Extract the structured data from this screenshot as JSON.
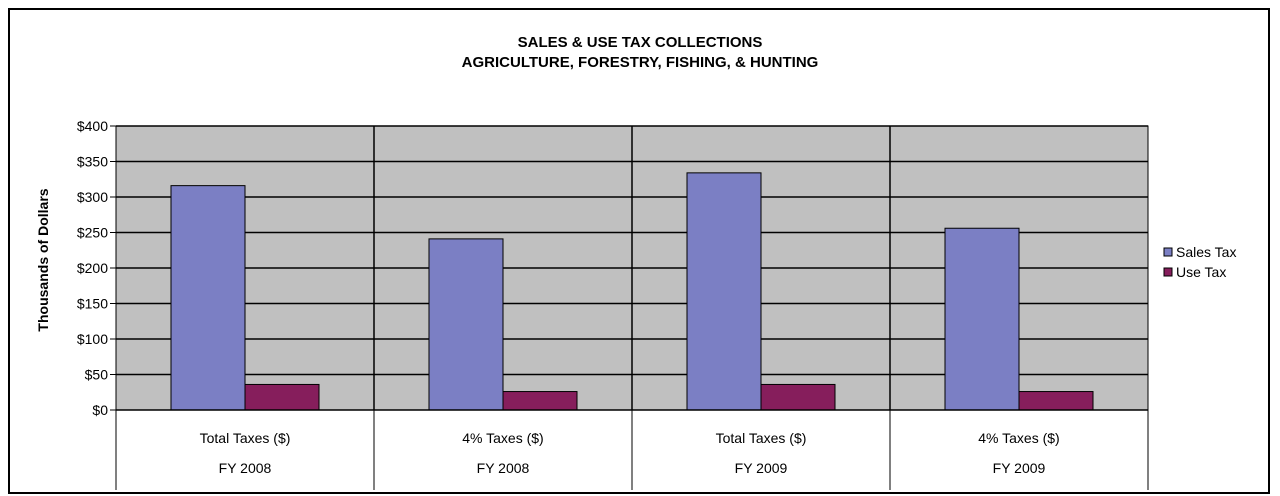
{
  "chart_data": {
    "type": "bar",
    "title": "SALES & USE TAX COLLECTIONS",
    "subtitle": "AGRICULTURE, FORESTRY, FISHING, & HUNTING",
    "ylabel": "Thousands of Dollars",
    "xlabel": "",
    "ylim": [
      0,
      400
    ],
    "yticks": [
      0,
      50,
      100,
      150,
      200,
      250,
      300,
      350,
      400
    ],
    "ytick_labels": [
      "$0",
      "$50",
      "$100",
      "$150",
      "$200",
      "$250",
      "$300",
      "$350",
      "$400"
    ],
    "categories": [
      "Total Taxes ($)",
      "4% Taxes ($)",
      "Total Taxes ($)",
      "4% Taxes ($)"
    ],
    "category_groups": [
      "FY 2008",
      "FY 2008",
      "FY 2009",
      "FY 2009"
    ],
    "series": [
      {
        "name": "Sales Tax",
        "color": "#7b7fc4",
        "values": [
          316,
          241,
          334,
          256
        ]
      },
      {
        "name": "Use Tax",
        "color": "#861e5c",
        "values": [
          36,
          26,
          36,
          26
        ]
      }
    ],
    "grid": true,
    "legend_position": "right",
    "plot_background": "#c0c0c0"
  }
}
